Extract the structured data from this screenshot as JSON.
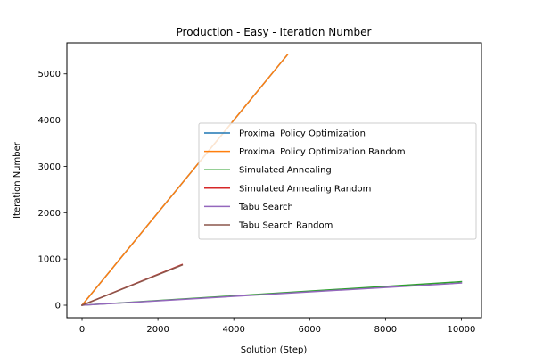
{
  "chart_data": {
    "type": "line",
    "title": "Production - Easy - Iteration Number",
    "xlabel": "Solution (Step)",
    "ylabel": "Iteration Number",
    "xlim": [
      -400,
      10530
    ],
    "ylim": [
      -270,
      5670
    ],
    "xticks": [
      0,
      2000,
      4000,
      6000,
      8000,
      10000
    ],
    "yticks": [
      0,
      1000,
      2000,
      3000,
      4000,
      5000
    ],
    "grid": false,
    "legend_position": "center-right",
    "series": [
      {
        "name": "Proximal Policy Optimization",
        "color": "#1f77b4",
        "x": [
          0,
          5400
        ],
        "y": [
          0,
          5400
        ]
      },
      {
        "name": "Proximal Policy Optimization Random",
        "color": "#ff7f0e",
        "x": [
          0,
          5420
        ],
        "y": [
          0,
          5420
        ]
      },
      {
        "name": "Simulated Annealing",
        "color": "#2ca02c",
        "x": [
          0,
          10000
        ],
        "y": [
          0,
          510
        ]
      },
      {
        "name": "Simulated Annealing Random",
        "color": "#d62728",
        "x": [
          0,
          2640
        ],
        "y": [
          0,
          880
        ]
      },
      {
        "name": "Tabu Search",
        "color": "#9467bd",
        "x": [
          0,
          10000
        ],
        "y": [
          0,
          480
        ]
      },
      {
        "name": "Tabu Search Random",
        "color": "#8c564b",
        "x": [
          0,
          2640
        ],
        "y": [
          0,
          870
        ]
      }
    ]
  }
}
